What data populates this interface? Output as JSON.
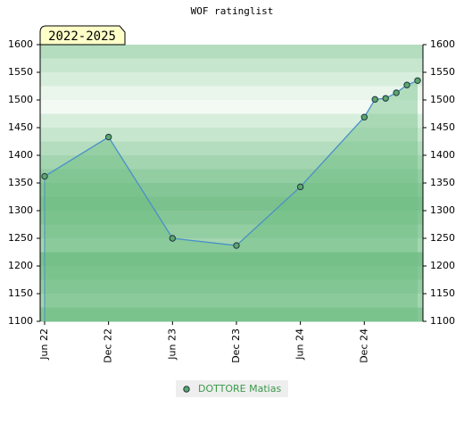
{
  "chart_data": {
    "type": "line",
    "title": "WOF ratinglist",
    "annotation": "2022-2025",
    "x": [
      "2022-06",
      "2022-12",
      "2023-06",
      "2023-12",
      "2024-06",
      "2024-12",
      "2025-01",
      "2025-02",
      "2025-03",
      "2025-04",
      "2025-05"
    ],
    "series": [
      {
        "name": "DOTTORE Matias",
        "color": "#4a90c8",
        "marker_color": "#5aa86a",
        "values": [
          1362,
          1433,
          1250,
          1237,
          1343,
          1469,
          1501,
          1503,
          1513,
          1527,
          1535
        ]
      }
    ],
    "xlim": [
      "2022-06",
      "2025-05"
    ],
    "xticks": [
      {
        "value": "2022-06",
        "label": "Jun 22"
      },
      {
        "value": "2022-12",
        "label": "Dec 22"
      },
      {
        "value": "2023-06",
        "label": "Jun 23"
      },
      {
        "value": "2023-12",
        "label": "Dec 23"
      },
      {
        "value": "2024-06",
        "label": "Jun 24"
      },
      {
        "value": "2024-12",
        "label": "Dec 24"
      }
    ],
    "ylim": [
      1100,
      1600
    ],
    "yticks": [
      1100,
      1150,
      1200,
      1250,
      1300,
      1350,
      1400,
      1450,
      1500,
      1550,
      1600
    ]
  }
}
